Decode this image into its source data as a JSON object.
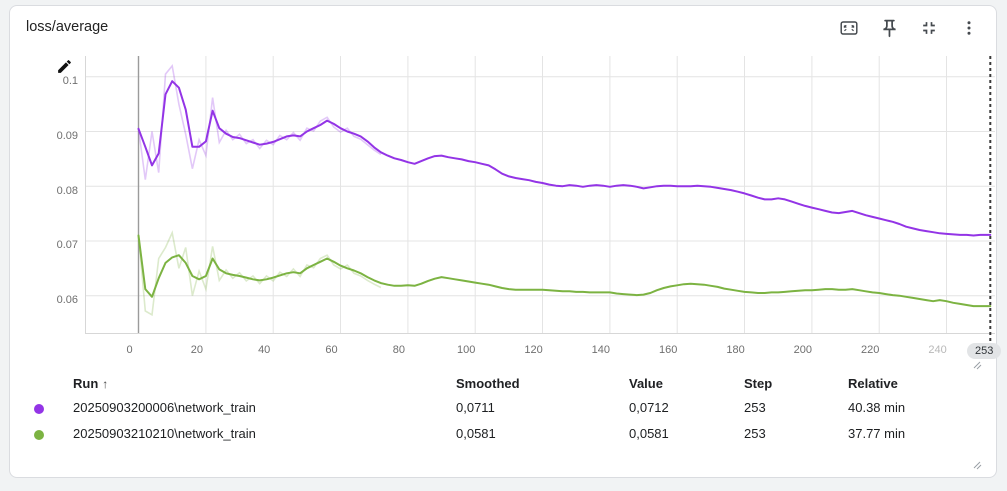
{
  "card": {
    "title": "loss/average"
  },
  "toolbar": {
    "icons": [
      "fit-to-data",
      "pin",
      "collapse",
      "more-options"
    ]
  },
  "chart_data": {
    "type": "line",
    "title": "loss/average",
    "xlabel": "",
    "ylabel": "",
    "x_range": [
      -15.9,
      254.4
    ],
    "y_range": [
      0.053,
      0.1038
    ],
    "grid": true,
    "x_ticks": [
      0,
      20,
      40,
      60,
      80,
      100,
      120,
      140,
      160,
      180,
      200,
      220,
      240
    ],
    "x_tick_muted": 240,
    "y_tick_values": [
      0.06,
      0.07,
      0.08,
      0.09,
      0.1
    ],
    "y_tick_labels": [
      "0.06",
      "0.07",
      "0.08",
      "0.09",
      "0.1"
    ],
    "cursor_step": 253,
    "cursor_label": "253",
    "steps": [
      0,
      2,
      4,
      6,
      8,
      10,
      12,
      14,
      16,
      18,
      20,
      22,
      24,
      26,
      28,
      30,
      32,
      34,
      36,
      38,
      40,
      42,
      44,
      46,
      48,
      50,
      52,
      54,
      56,
      58,
      60,
      62,
      64,
      66,
      68,
      70,
      72,
      74,
      76,
      78,
      80,
      82,
      84,
      86,
      88,
      90,
      92,
      94,
      96,
      98,
      100,
      102,
      104,
      106,
      108,
      110,
      112,
      114,
      116,
      118,
      120,
      122,
      124,
      126,
      128,
      130,
      132,
      134,
      136,
      138,
      140,
      142,
      144,
      146,
      148,
      150,
      152,
      154,
      156,
      158,
      160,
      162,
      164,
      166,
      168,
      170,
      172,
      174,
      176,
      178,
      180,
      182,
      184,
      186,
      188,
      190,
      192,
      194,
      196,
      198,
      200,
      202,
      204,
      206,
      208,
      210,
      212,
      214,
      216,
      218,
      220,
      222,
      224,
      226,
      228,
      230,
      232,
      234,
      236,
      238,
      240,
      242,
      244,
      246,
      248,
      250,
      252,
      253
    ],
    "series": [
      {
        "name": "20250903200006\\network_train",
        "color": "#9334e6",
        "smoothed": [
          0.0905,
          0.0872,
          0.0838,
          0.086,
          0.0968,
          0.0992,
          0.098,
          0.094,
          0.0872,
          0.0872,
          0.0882,
          0.0938,
          0.0906,
          0.0896,
          0.089,
          0.0888,
          0.0884,
          0.088,
          0.0876,
          0.0878,
          0.0881,
          0.0886,
          0.0891,
          0.0893,
          0.0891,
          0.09,
          0.0906,
          0.0912,
          0.092,
          0.0914,
          0.0906,
          0.09,
          0.0896,
          0.0891,
          0.0882,
          0.0871,
          0.0862,
          0.0856,
          0.0851,
          0.0848,
          0.0844,
          0.0841,
          0.0846,
          0.0851,
          0.0855,
          0.0856,
          0.0853,
          0.0851,
          0.0849,
          0.0846,
          0.0844,
          0.0841,
          0.0838,
          0.0831,
          0.0823,
          0.0818,
          0.0815,
          0.0813,
          0.0811,
          0.0808,
          0.0806,
          0.0803,
          0.0801,
          0.08,
          0.0802,
          0.0801,
          0.0799,
          0.0801,
          0.0802,
          0.0801,
          0.0799,
          0.0801,
          0.0802,
          0.0801,
          0.0799,
          0.0796,
          0.0798,
          0.08,
          0.0801,
          0.0801,
          0.08,
          0.08,
          0.08,
          0.0801,
          0.08,
          0.0799,
          0.0797,
          0.0795,
          0.0793,
          0.079,
          0.0787,
          0.0783,
          0.0779,
          0.0776,
          0.0776,
          0.0778,
          0.0776,
          0.0772,
          0.0768,
          0.0764,
          0.0761,
          0.0758,
          0.0755,
          0.0752,
          0.0751,
          0.0753,
          0.0755,
          0.0751,
          0.0747,
          0.0744,
          0.0741,
          0.0738,
          0.0735,
          0.0731,
          0.0726,
          0.0723,
          0.072,
          0.0718,
          0.0716,
          0.0714,
          0.0713,
          0.0712,
          0.0711,
          0.0711,
          0.071,
          0.0711,
          0.0711,
          0.0711
        ],
        "raw_steps": [
          0,
          2,
          4,
          6,
          8,
          10,
          12,
          14,
          16,
          18,
          20,
          22,
          24,
          26,
          28,
          30,
          32,
          34,
          36,
          38,
          40,
          42,
          44,
          46,
          48,
          50,
          52,
          54,
          56,
          58,
          60,
          62,
          64,
          66,
          68,
          70,
          72
        ],
        "raw": [
          0.0905,
          0.0812,
          0.09,
          0.0825,
          0.1005,
          0.102,
          0.095,
          0.0895,
          0.0832,
          0.0885,
          0.0856,
          0.0962,
          0.088,
          0.0902,
          0.0885,
          0.0895,
          0.0878,
          0.0885,
          0.0869,
          0.0884,
          0.0876,
          0.0893,
          0.0885,
          0.0898,
          0.0884,
          0.0906,
          0.0901,
          0.0919,
          0.0926,
          0.0908,
          0.0899,
          0.0906,
          0.0891,
          0.0886,
          0.0876,
          0.0866,
          0.0858
        ]
      },
      {
        "name": "20250903210210\\network_train",
        "color": "#7cb342",
        "smoothed": [
          0.071,
          0.0612,
          0.0598,
          0.0632,
          0.066,
          0.067,
          0.0674,
          0.066,
          0.0636,
          0.063,
          0.0636,
          0.0668,
          0.0648,
          0.0641,
          0.0638,
          0.0636,
          0.0633,
          0.063,
          0.0628,
          0.063,
          0.0633,
          0.0637,
          0.0641,
          0.0643,
          0.0641,
          0.065,
          0.0656,
          0.0662,
          0.0668,
          0.0662,
          0.0655,
          0.065,
          0.0646,
          0.0641,
          0.0634,
          0.0628,
          0.0623,
          0.062,
          0.0618,
          0.0618,
          0.0619,
          0.0618,
          0.0622,
          0.0627,
          0.0631,
          0.0634,
          0.0632,
          0.063,
          0.0628,
          0.0626,
          0.0624,
          0.0622,
          0.062,
          0.0617,
          0.0614,
          0.0612,
          0.0611,
          0.0611,
          0.0611,
          0.0611,
          0.0611,
          0.061,
          0.0609,
          0.0608,
          0.0608,
          0.0607,
          0.0607,
          0.0606,
          0.0606,
          0.0606,
          0.0606,
          0.0604,
          0.0603,
          0.0602,
          0.0601,
          0.0602,
          0.0605,
          0.061,
          0.0614,
          0.0617,
          0.0619,
          0.0621,
          0.0622,
          0.0621,
          0.062,
          0.0618,
          0.0616,
          0.0613,
          0.0611,
          0.0609,
          0.0607,
          0.0606,
          0.0605,
          0.0605,
          0.0606,
          0.0606,
          0.0607,
          0.0608,
          0.0609,
          0.061,
          0.061,
          0.0611,
          0.0612,
          0.0612,
          0.0611,
          0.0611,
          0.0612,
          0.061,
          0.0608,
          0.0606,
          0.0605,
          0.0603,
          0.0601,
          0.06,
          0.0598,
          0.0596,
          0.0594,
          0.0592,
          0.059,
          0.0592,
          0.059,
          0.0587,
          0.0585,
          0.0583,
          0.0581,
          0.0581,
          0.0581,
          0.0581
        ],
        "raw_steps": [
          0,
          2,
          4,
          6,
          8,
          10,
          12,
          14,
          16,
          18,
          20,
          22,
          24,
          26,
          28,
          30,
          32,
          34,
          36,
          38,
          40,
          42,
          44,
          46,
          48,
          50,
          52,
          54,
          56,
          58,
          60,
          62,
          64,
          66,
          68,
          70,
          72
        ],
        "raw": [
          0.071,
          0.0572,
          0.0565,
          0.0668,
          0.0688,
          0.0715,
          0.065,
          0.0688,
          0.06,
          0.0645,
          0.0612,
          0.069,
          0.0628,
          0.0647,
          0.0632,
          0.0642,
          0.0627,
          0.0636,
          0.0622,
          0.0636,
          0.0627,
          0.0643,
          0.0635,
          0.0649,
          0.0635,
          0.0656,
          0.0651,
          0.0668,
          0.0674,
          0.0656,
          0.0649,
          0.0656,
          0.0641,
          0.0636,
          0.0628,
          0.0621,
          0.0615
        ]
      }
    ]
  },
  "table": {
    "headers": {
      "run": "Run",
      "sort_arrow": "↑",
      "smoothed": "Smoothed",
      "value": "Value",
      "step": "Step",
      "relative": "Relative"
    },
    "rows": [
      {
        "color": "#9334e6",
        "run": "20250903200006\\network_train",
        "smoothed": "0,0711",
        "value": "0,0712",
        "step": "253",
        "relative": "40.38 min"
      },
      {
        "color": "#7cb342",
        "run": "20250903210210\\network_train",
        "smoothed": "0,0581",
        "value": "0,0581",
        "step": "253",
        "relative": "37.77 min"
      }
    ]
  }
}
